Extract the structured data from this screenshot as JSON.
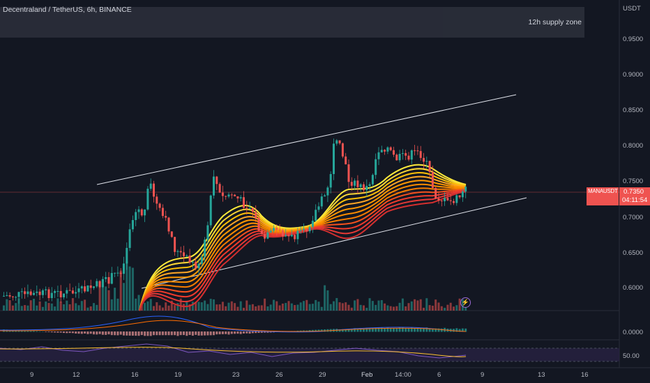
{
  "header": {
    "title": "Decentraland / TetherUS, 6h, BINANCE"
  },
  "supply_zone": {
    "label": "12h supply zone"
  },
  "price_axis": {
    "currency": "USDT",
    "ticks": [
      "0.9500",
      "0.9000",
      "0.8500",
      "0.8000",
      "0.7500",
      "0.7000",
      "0.6500",
      "0.6000"
    ],
    "macd_tick": "0.0000",
    "rsi_tick": "50.00"
  },
  "last_price": {
    "symbol": "MANAUSDT",
    "price": "0.7350",
    "countdown": "04:11:54"
  },
  "time_axis": {
    "ticks": [
      "9",
      "12",
      "16",
      "19",
      "23",
      "26",
      "29",
      "Feb",
      "14:00",
      "6",
      "9",
      "13",
      "16"
    ]
  },
  "colors": {
    "up": "#26a69a",
    "down": "#ef5350",
    "ribbon_top": "#ffeb3b",
    "ribbon_bottom": "#f21d1d"
  }
}
